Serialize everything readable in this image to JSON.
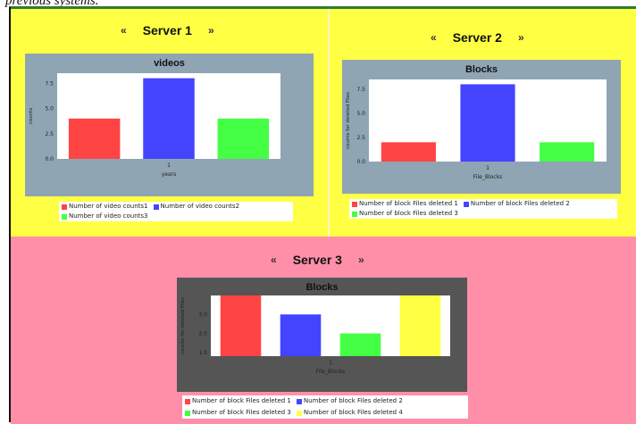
{
  "caption": "previous systems.",
  "servers": [
    {
      "title": "Server 1",
      "prev": "«",
      "next": "»",
      "chart": {
        "title": "videos",
        "ylabel": "counts",
        "xlabel": "years",
        "tick_x": "1",
        "yticks": [
          "0.0",
          "2.5",
          "5.0",
          "7.5"
        ],
        "legend": [
          "Number of video counts1",
          "Number of video counts2",
          "Number of video counts3"
        ],
        "colors": [
          "#ff4444",
          "#4444ff",
          "#44ff44"
        ],
        "frame": "#8fa5b3"
      }
    },
    {
      "title": "Server 2",
      "prev": "«",
      "next": "»",
      "chart": {
        "title": "Blocks",
        "ylabel": "counts for deleted Files",
        "xlabel": "File_Blocks",
        "tick_x": "1",
        "yticks": [
          "0.0",
          "2.5",
          "5.0",
          "7.5"
        ],
        "legend": [
          "Number of block Files deleted 1",
          "Number of block Files deleted 2",
          "Number of block Files deleted 3"
        ],
        "colors": [
          "#ff4444",
          "#4444ff",
          "#44ff44"
        ],
        "frame": "#8fa5b3"
      }
    },
    {
      "title": "Server 3",
      "prev": "«",
      "next": "»",
      "chart": {
        "title": "Blocks",
        "ylabel": "counts for deleted Files",
        "xlabel": "File_Blocks",
        "tick_x": "1",
        "yticks": [
          "1.0",
          "2.0",
          "3.0"
        ],
        "legend": [
          "Number of block Files deleted 1",
          "Number of block Files deleted 2",
          "Number of block Files deleted 3",
          "Number of block Files deleted 4"
        ],
        "colors": [
          "#ff4444",
          "#4444ff",
          "#44ff44",
          "#ffff44"
        ],
        "frame": "#555555"
      }
    }
  ],
  "chart_data": [
    {
      "type": "bar",
      "title": "videos",
      "xlabel": "years",
      "ylabel": "counts",
      "categories": [
        "1"
      ],
      "ylim": [
        0,
        8.5
      ],
      "series": [
        {
          "name": "Number of video counts1",
          "values": [
            4
          ]
        },
        {
          "name": "Number of video counts2",
          "values": [
            8
          ]
        },
        {
          "name": "Number of video counts3",
          "values": [
            4
          ]
        }
      ]
    },
    {
      "type": "bar",
      "title": "Blocks",
      "xlabel": "File_Blocks",
      "ylabel": "counts for deleted Files",
      "categories": [
        "1"
      ],
      "ylim": [
        0,
        8.5
      ],
      "series": [
        {
          "name": "Number of block Files deleted 1",
          "values": [
            2
          ]
        },
        {
          "name": "Number of block Files deleted 2",
          "values": [
            8
          ]
        },
        {
          "name": "Number of block Files deleted 3",
          "values": [
            2
          ]
        }
      ]
    },
    {
      "type": "bar",
      "title": "Blocks",
      "xlabel": "File_Blocks",
      "ylabel": "counts for deleted Files",
      "categories": [
        "1"
      ],
      "ylim": [
        0.8,
        4.0
      ],
      "series": [
        {
          "name": "Number of block Files deleted 1",
          "values": [
            4
          ]
        },
        {
          "name": "Number of block Files deleted 2",
          "values": [
            3
          ]
        },
        {
          "name": "Number of block Files deleted 3",
          "values": [
            2
          ]
        },
        {
          "name": "Number of block Files deleted 4",
          "values": [
            4
          ]
        }
      ]
    }
  ]
}
